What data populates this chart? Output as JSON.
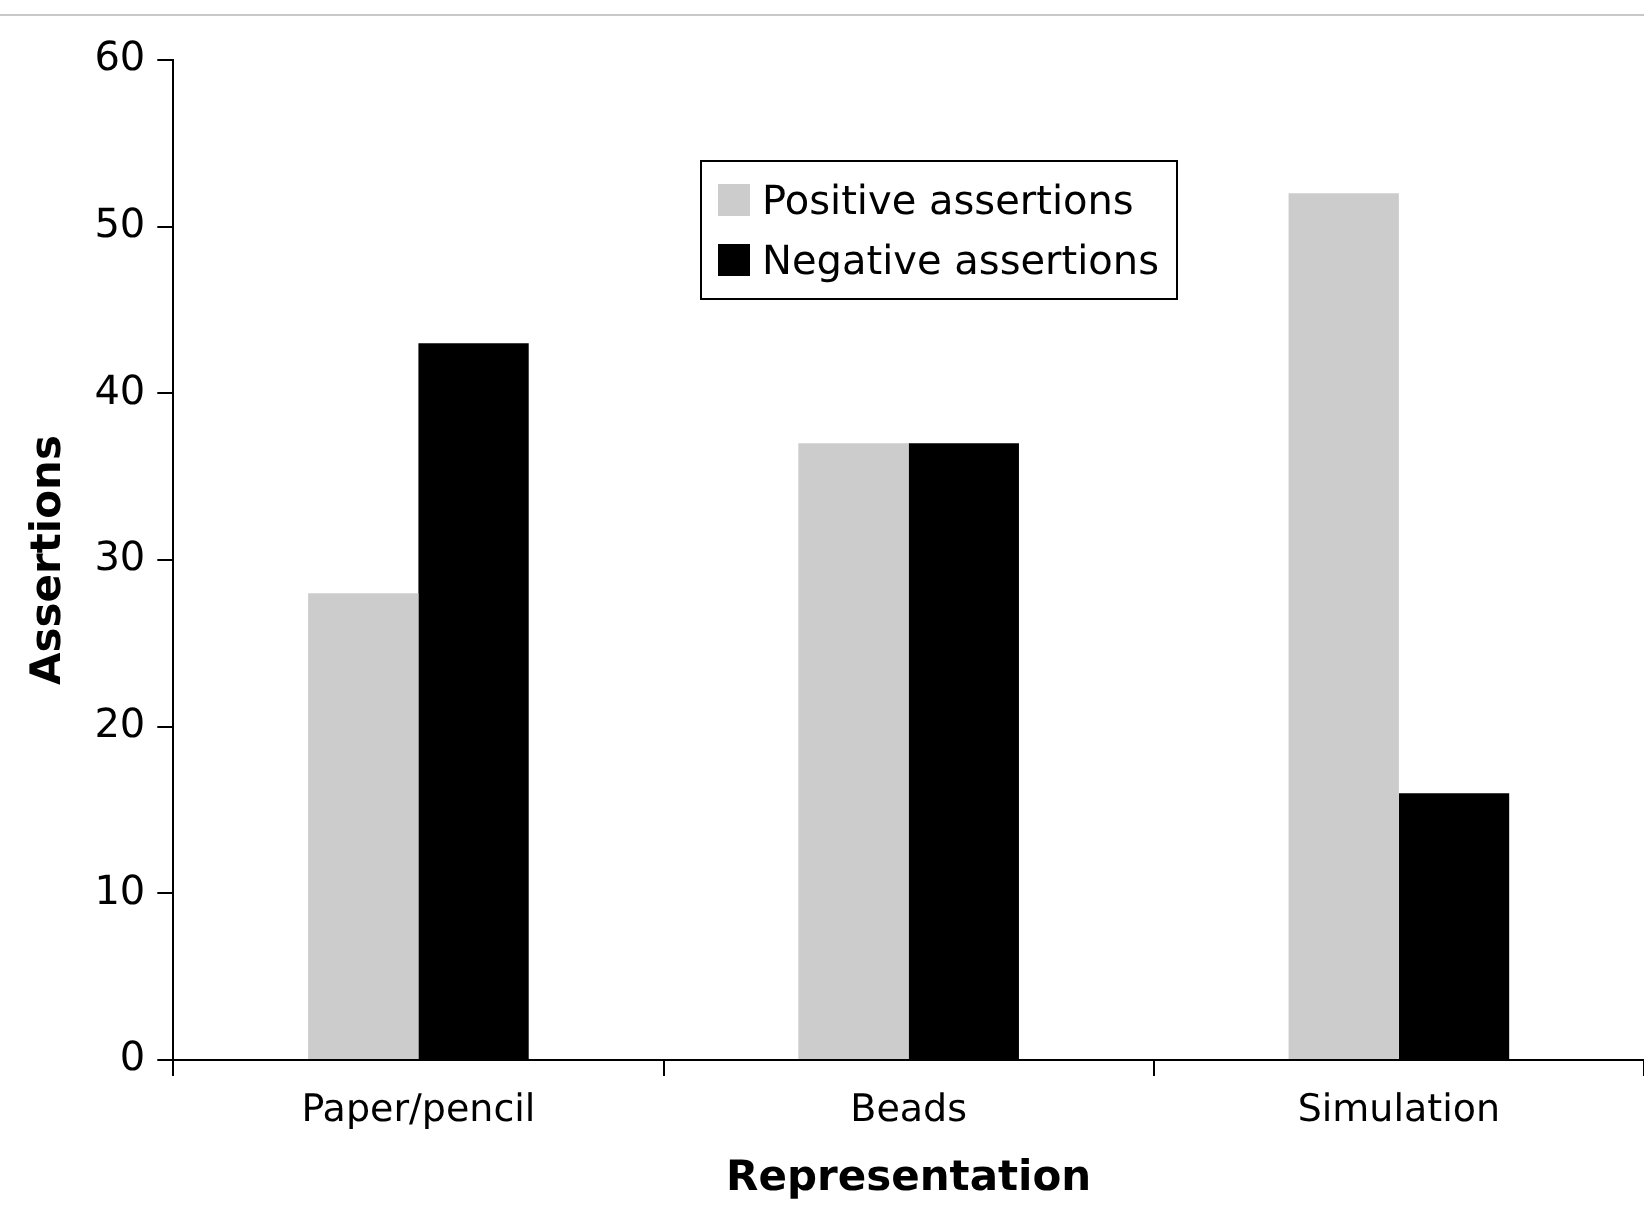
{
  "chart_data": {
    "type": "bar",
    "xlabel": "Representation",
    "ylabel": "Assertions",
    "categories": [
      "Paper/pencil",
      "Beads",
      "Simulation"
    ],
    "series": [
      {
        "name": "Positive assertions",
        "color": "#cccccc",
        "values": [
          28,
          37,
          52
        ]
      },
      {
        "name": "Negative assertions",
        "color": "#000000",
        "values": [
          43,
          37,
          16
        ]
      }
    ],
    "ylim": [
      0,
      60
    ],
    "yticks": [
      0,
      10,
      20,
      30,
      40,
      50,
      60
    ],
    "grid": false,
    "legend": "top"
  }
}
